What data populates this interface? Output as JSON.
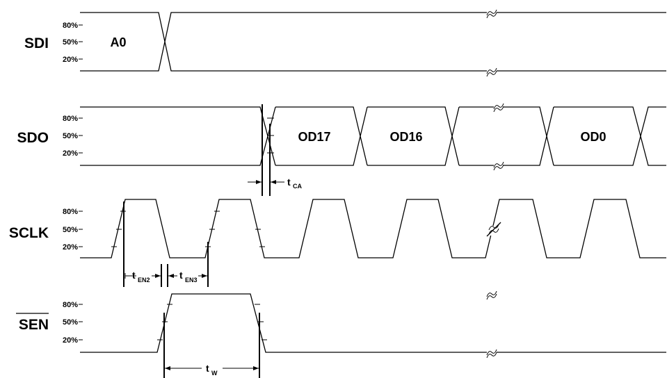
{
  "signals": {
    "sdi": "SDI",
    "sdo": "SDO",
    "sclk": "SCLK",
    "sen": "SEN"
  },
  "levels": {
    "high": "80%",
    "mid": "50%",
    "low": "20%"
  },
  "data_labels": {
    "sdi_addr": "A0",
    "sdo_bit17": "OD17",
    "sdo_bit16": "OD16",
    "sdo_bit0": "OD0"
  },
  "timing": {
    "t_ca": {
      "main": "t",
      "sub": "CA"
    },
    "t_en2": {
      "main": "t",
      "sub": "EN2"
    },
    "t_en3": {
      "main": "t",
      "sub": "EN3"
    },
    "t_w": {
      "main": "t",
      "sub": "W"
    }
  }
}
